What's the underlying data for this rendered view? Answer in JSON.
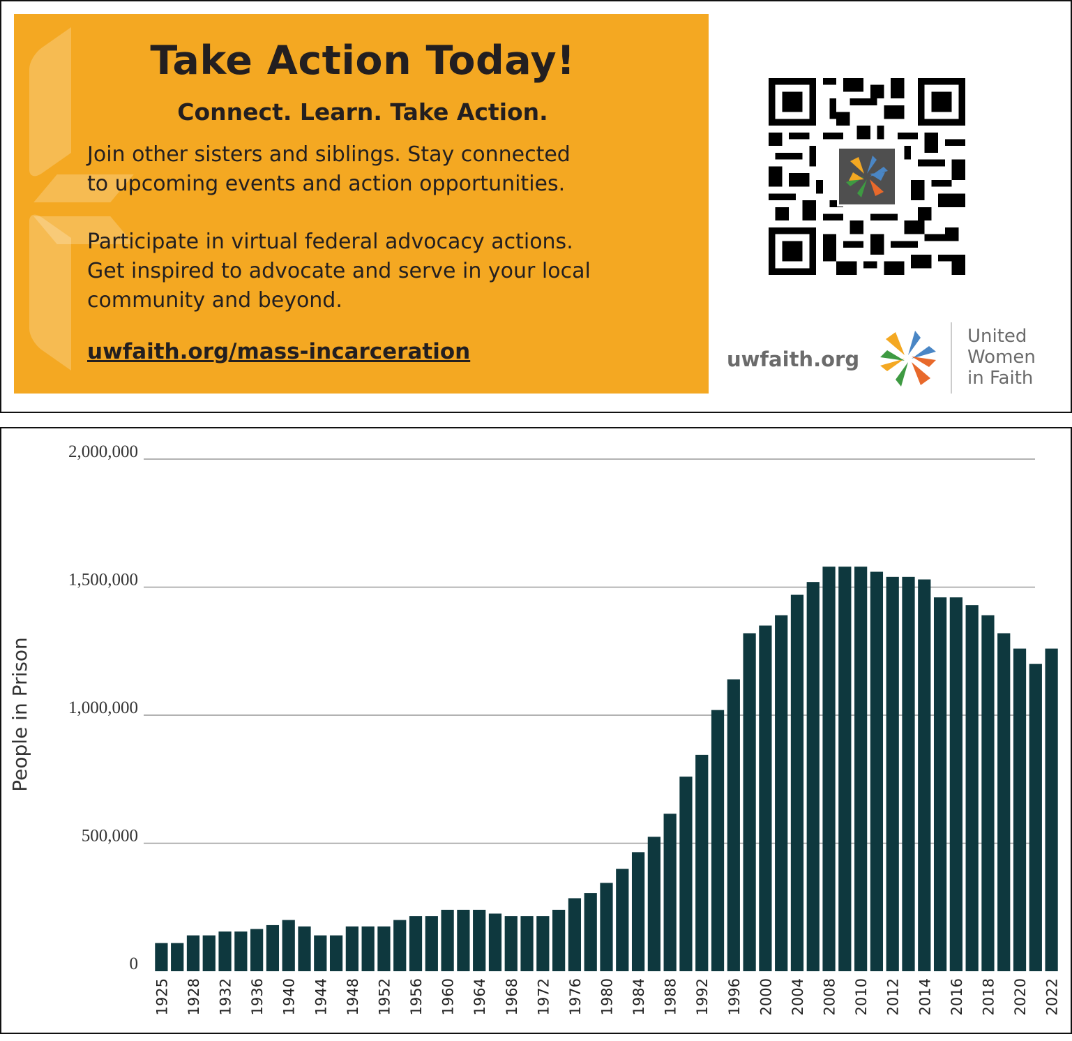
{
  "promo": {
    "title": "Take Action Today!",
    "subtitle": "Connect. Learn. Take Action.",
    "paragraph_1_line_1": "Join other sisters and siblings. Stay connected",
    "paragraph_1_line_2": "to upcoming events and action opportunities.",
    "paragraph_2_line_1": "Participate in virtual federal advocacy actions.",
    "paragraph_2_line_2": "Get inspired to advocate and serve in your local",
    "paragraph_2_line_3": "community and beyond.",
    "link": "uwfaith.org/mass-incarceration",
    "background_color": "#f4a822"
  },
  "branding": {
    "site": "uwfaith.org",
    "org_name_line_1": "United",
    "org_name_line_2": "Women",
    "org_name_line_3": "in Faith",
    "logo_colors": [
      "#4a86c5",
      "#f4a822",
      "#e8692b",
      "#3e9a42"
    ]
  },
  "chart_data": {
    "type": "bar",
    "title": "",
    "xlabel": "",
    "ylabel": "People in Prison",
    "ylim": [
      0,
      2000000
    ],
    "yticks": [
      0,
      500000,
      1000000,
      1500000,
      2000000
    ],
    "ytick_labels": [
      "0",
      "500,000",
      "1,000,000",
      "1,500,000",
      "2,000,000"
    ],
    "x_tick_labels": [
      "1925",
      "1928",
      "1932",
      "1936",
      "1940",
      "1944",
      "1948",
      "1952",
      "1956",
      "1960",
      "1964",
      "1968",
      "1972",
      "1976",
      "1980",
      "1984",
      "1988",
      "1992",
      "1996",
      "2000",
      "2004",
      "2008",
      "2010",
      "2012",
      "2014",
      "2016",
      "2018",
      "2020",
      "2022"
    ],
    "categories": [
      "1925",
      "1926",
      "1928",
      "1930",
      "1932",
      "1934",
      "1936",
      "1938",
      "1940",
      "1942",
      "1944",
      "1946",
      "1948",
      "1950",
      "1952",
      "1954",
      "1956",
      "1958",
      "1960",
      "1962",
      "1964",
      "1966",
      "1968",
      "1970",
      "1972",
      "1974",
      "1976",
      "1978",
      "1980",
      "1982",
      "1984",
      "1986",
      "1988",
      "1990",
      "1992",
      "1994",
      "1996",
      "1998",
      "2000",
      "2002",
      "2004",
      "2006",
      "2008",
      "2009",
      "2010",
      "2011",
      "2012",
      "2013",
      "2014",
      "2015",
      "2016",
      "2017",
      "2018",
      "2019",
      "2020",
      "2021",
      "2022"
    ],
    "values": [
      110000,
      110000,
      140000,
      140000,
      155000,
      155000,
      165000,
      180000,
      200000,
      175000,
      140000,
      140000,
      175000,
      175000,
      175000,
      200000,
      215000,
      215000,
      240000,
      240000,
      240000,
      225000,
      215000,
      215000,
      215000,
      240000,
      285000,
      305000,
      345000,
      400000,
      465000,
      525000,
      615000,
      760000,
      845000,
      1020000,
      1140000,
      1320000,
      1350000,
      1390000,
      1470000,
      1520000,
      1580000,
      1580000,
      1580000,
      1560000,
      1540000,
      1540000,
      1530000,
      1460000,
      1460000,
      1430000,
      1390000,
      1320000,
      1260000,
      1200000,
      1260000
    ],
    "bar_color": "#0e383e",
    "grid": true,
    "legend": "none"
  }
}
